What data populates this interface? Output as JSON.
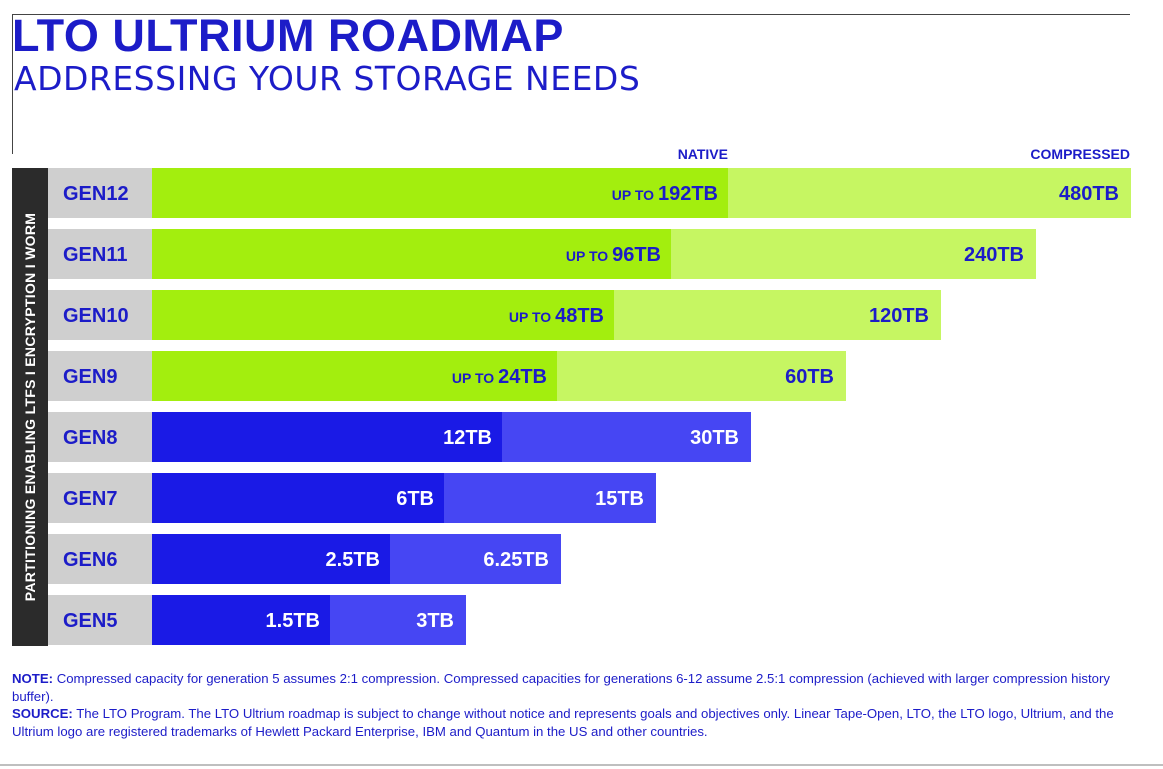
{
  "header": {
    "title": "LTO ULTRIUM ROADMAP",
    "subtitle": "ADDRESSING YOUR STORAGE NEEDS"
  },
  "side_label": "PARTITIONING ENABLING LTFS  I  ENCRYPTION  I  WORM",
  "columns": {
    "native": "NATIVE",
    "compressed": "COMPRESSED"
  },
  "chart_data": {
    "type": "bar",
    "orientation": "horizontal",
    "stacked": "overlay",
    "categories": [
      "GEN12",
      "GEN11",
      "GEN10",
      "GEN9",
      "GEN8",
      "GEN7",
      "GEN6",
      "GEN5"
    ],
    "series": [
      {
        "name": "NATIVE",
        "values": [
          192,
          96,
          48,
          24,
          12,
          6,
          2.5,
          1.5
        ],
        "labels": [
          "192TB",
          "96TB",
          "48TB",
          "24TB",
          "12TB",
          "6TB",
          "2.5TB",
          "1.5TB"
        ],
        "prefixes": [
          "UP TO",
          "UP TO",
          "UP TO",
          "UP TO",
          "",
          "",
          "",
          ""
        ]
      },
      {
        "name": "COMPRESSED",
        "values": [
          480,
          240,
          120,
          60,
          30,
          15,
          6.25,
          3
        ],
        "labels": [
          "480TB",
          "240TB",
          "120TB",
          "60TB",
          "30TB",
          "15TB",
          "6.25TB",
          "3TB"
        ]
      }
    ],
    "legend": "top"
  },
  "colors": {
    "title": "#1c1cc8",
    "label_box": "#cfcfcf",
    "label_text": "#1c1cc8",
    "future_native": "#a3ee0e",
    "future_compressed": "#c6f662",
    "past_native": "#1a1ae6",
    "past_compressed": "#4646f3",
    "side_band": "#2b2b2b"
  },
  "notes": {
    "note_label": "NOTE:",
    "note_text": " Compressed capacity for generation 5 assumes 2:1 compression. Compressed capacities for generations 6-12 assume 2.5:1 compression (achieved with larger compression history buffer).",
    "source_label": "SOURCE:",
    "source_text": " The LTO Program. The LTO Ultrium roadmap is subject to change without notice and represents goals and objectives only. Linear Tape-Open, LTO, the LTO logo, Ultrium, and the Ultrium logo are registered trademarks of Hewlett Packard Enterprise, IBM and Quantum in the US and other countries."
  }
}
